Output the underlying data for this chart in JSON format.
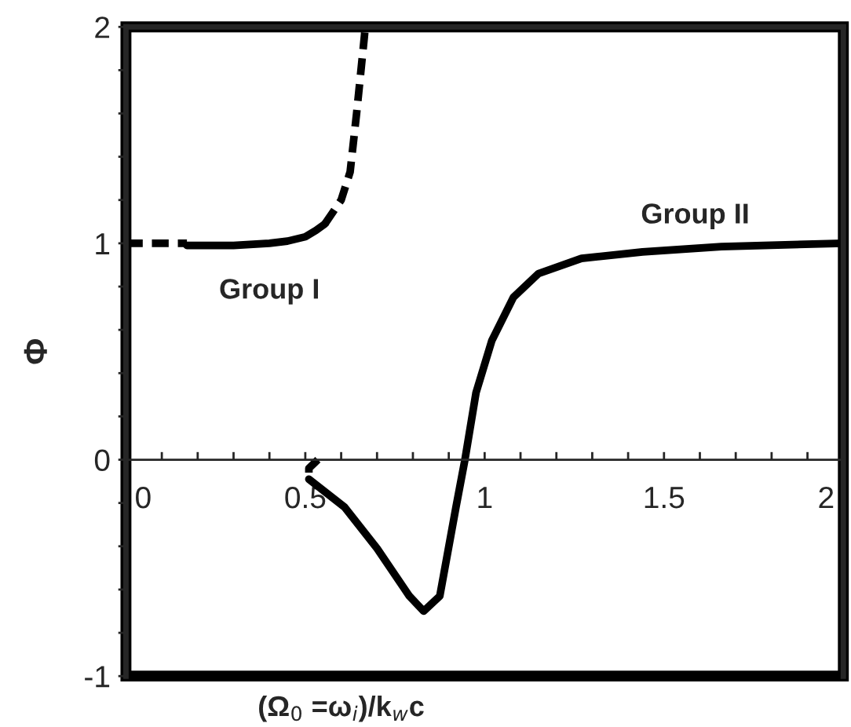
{
  "chart_data": {
    "type": "line",
    "xlabel": "(Ω$_{0}$ =ω$_{i}$)/k$_{w}$c",
    "ylabel": "Φ",
    "xlim": [
      0,
      2
    ],
    "ylim": [
      -1,
      2
    ],
    "xticks": [
      0,
      {
        "value": 0.1,
        "label": null
      },
      {
        "value": 0.2,
        "label": null
      },
      {
        "value": 0.3,
        "label": null
      },
      {
        "value": 0.4,
        "label": null
      },
      0.5,
      {
        "value": 0.6,
        "label": null
      },
      {
        "value": 0.7,
        "label": null
      },
      {
        "value": 0.8,
        "label": null
      },
      {
        "value": 0.9,
        "label": null
      },
      1,
      {
        "value": 1.1,
        "label": null
      },
      {
        "value": 1.2,
        "label": null
      },
      {
        "value": 1.3,
        "label": null
      },
      {
        "value": 1.4,
        "label": null
      },
      1.5,
      {
        "value": 1.6,
        "label": null
      },
      {
        "value": 1.7,
        "label": null
      },
      {
        "value": 1.8,
        "label": null
      },
      {
        "value": 1.9,
        "label": null
      },
      2
    ],
    "yticks": [
      -1,
      {
        "value": -0.8,
        "label": null
      },
      {
        "value": -0.6,
        "label": null
      },
      {
        "value": -0.4,
        "label": null
      },
      {
        "value": -0.2,
        "label": null
      },
      0,
      {
        "value": 0.2,
        "label": null
      },
      {
        "value": 0.4,
        "label": null
      },
      {
        "value": 0.6,
        "label": null
      },
      {
        "value": 0.8,
        "label": null
      },
      1,
      {
        "value": 1.2,
        "label": null
      },
      {
        "value": 1.4,
        "label": null
      },
      {
        "value": 1.6,
        "label": null
      },
      {
        "value": 1.8,
        "label": null
      },
      2
    ],
    "grid": false,
    "legend": false,
    "marker": "none",
    "series": [
      {
        "color": "#000000",
        "line_style": "dashed",
        "x": [
          0,
          0.17
        ],
        "values": [
          1,
          1
        ]
      },
      {
        "name": "Group I",
        "color": "#000000",
        "line_style": "solid",
        "x": [
          0.17,
          0.3,
          0.4,
          0.45,
          0.5,
          0.53,
          0.555
        ],
        "values": [
          0.99,
          0.99,
          1.0,
          1.01,
          1.03,
          1.06,
          1.09
        ]
      },
      {
        "color": "#000000",
        "line_style": "dashed",
        "x": [
          0.555,
          0.6,
          0.625,
          0.643,
          0.665,
          0.667
        ],
        "values": [
          1.09,
          1.2,
          1.33,
          1.6,
          1.96,
          2
        ]
      },
      {
        "color": "#000000",
        "line_style": "dashed",
        "x": [
          0.535,
          0.51,
          0.51
        ],
        "values": [
          0,
          -0.04,
          -0.09
        ]
      },
      {
        "name": "Group II",
        "color": "#000000",
        "line_style": "solid",
        "x": [
          0.51,
          0.61,
          0.7,
          0.79,
          0.83,
          0.875,
          0.92,
          0.945,
          0.976,
          1.02,
          1.08,
          1.15,
          1.27,
          1.44,
          1.66,
          2
        ],
        "values": [
          -0.09,
          -0.22,
          -0.41,
          -0.63,
          -0.7,
          -0.63,
          -0.22,
          0,
          0.31,
          0.55,
          0.75,
          0.86,
          0.93,
          0.96,
          0.985,
          1.0
        ]
      }
    ]
  }
}
